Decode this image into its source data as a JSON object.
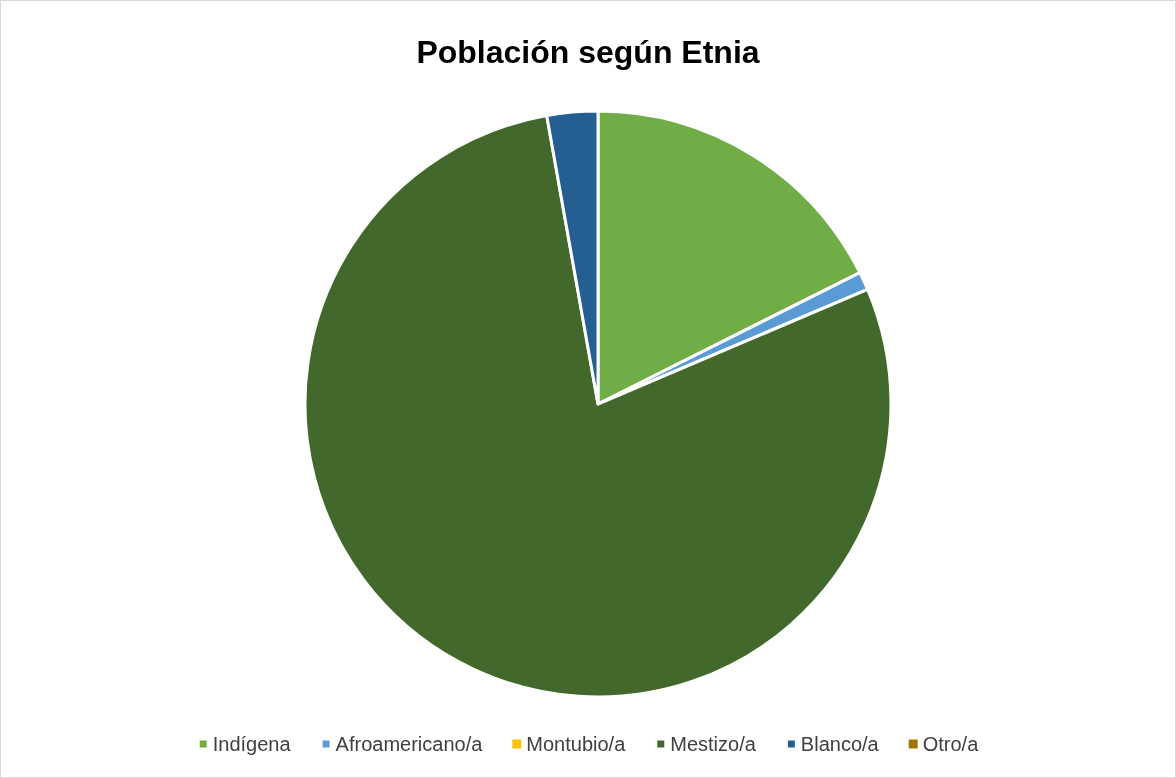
{
  "chart_data": {
    "type": "pie",
    "title": "Población según Etnia",
    "categories": [
      "Indígena",
      "Afroamericano/a",
      "Montubio/a",
      "Mestizo/a",
      "Blanco/a",
      "Otro/a"
    ],
    "values": [
      17.6,
      1.0,
      0,
      78.6,
      2.8,
      0
    ],
    "colors": [
      "#70ad47",
      "#5b9bd5",
      "#ffc000",
      "#43682b",
      "#255e91",
      "#9e7800"
    ],
    "legend": "bottom"
  }
}
